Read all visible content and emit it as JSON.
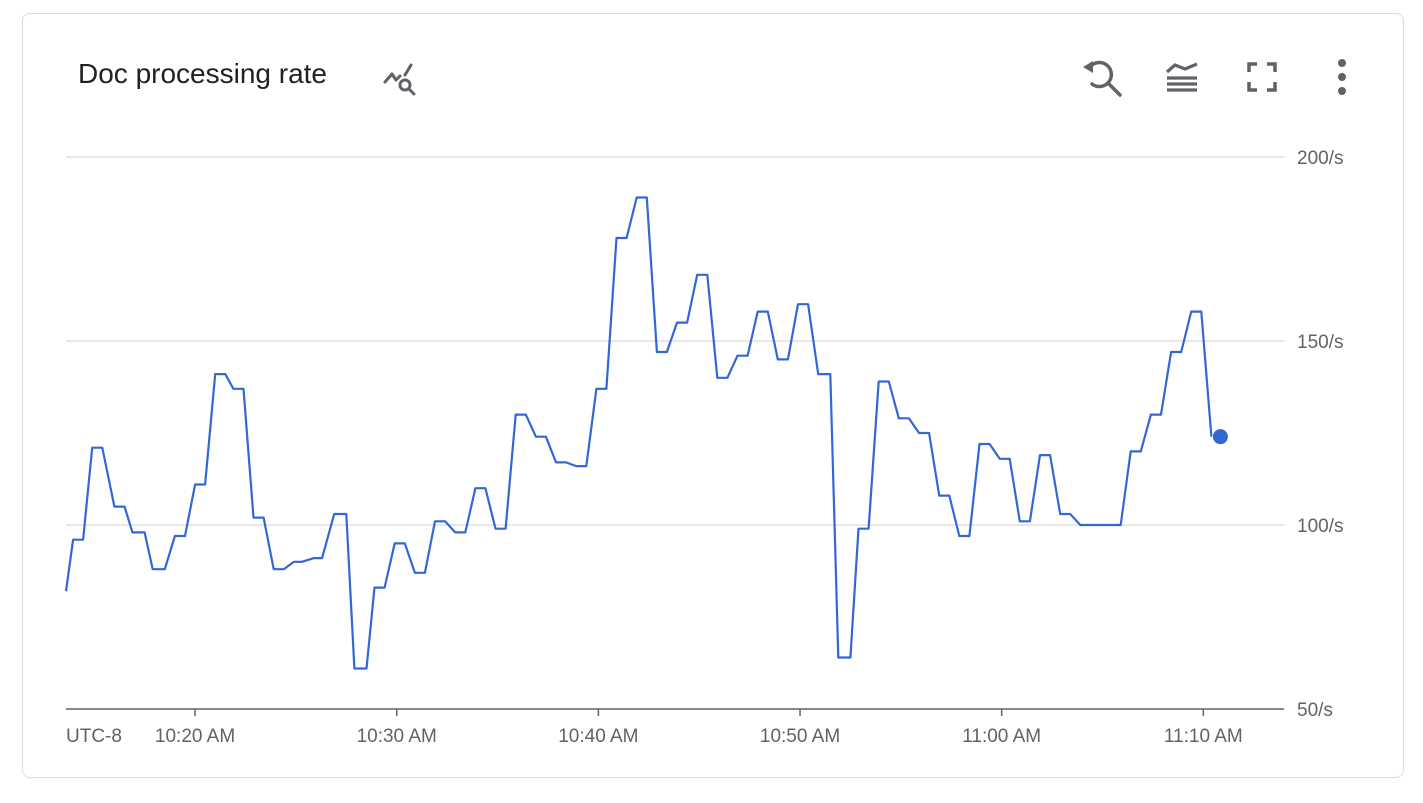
{
  "card": {
    "title": "Doc processing rate"
  },
  "icons": {
    "explore": "chart-explore-icon",
    "reset_zoom": "reset-zoom-icon",
    "legend": "legend-toggle-icon",
    "fullscreen": "fullscreen-icon",
    "more": "more-vert-icon"
  },
  "colors": {
    "series": "#3367d6",
    "grid": "#e0e0e0",
    "axis": "#5f6368",
    "text": "#202124"
  },
  "chart_data": {
    "type": "line",
    "timezone_label": "UTC-8",
    "x_tick_labels": [
      "10:20 AM",
      "10:30 AM",
      "10:40 AM",
      "10:50 AM",
      "11:00 AM",
      "11:10 AM"
    ],
    "x_ticks_min": [
      20,
      30,
      40,
      50,
      60,
      70
    ],
    "xlim_min": [
      13.6,
      74.0
    ],
    "y_tick_labels": [
      "50/s",
      "100/s",
      "150/s",
      "200/s"
    ],
    "y_ticks": [
      50,
      100,
      150,
      200
    ],
    "ylim": [
      50,
      200
    ],
    "grid": true,
    "series": [
      {
        "x_min": [
          13.6,
          13.95,
          14.45,
          14.9,
          15.4,
          16.0,
          16.5,
          16.9,
          17.5,
          17.9,
          18.5,
          19.0,
          19.5,
          20.0,
          20.5,
          21.0,
          21.5,
          21.9,
          22.4,
          22.9,
          23.4,
          23.9,
          24.4,
          24.9,
          25.3,
          25.9,
          26.3,
          26.9,
          27.5,
          27.9,
          28.5,
          28.9,
          29.4,
          29.9,
          30.4,
          30.9,
          31.4,
          31.9,
          32.4,
          32.9,
          33.4,
          33.9,
          34.4,
          34.9,
          35.4,
          35.9,
          36.4,
          36.9,
          37.4,
          37.9,
          38.4,
          38.9,
          39.4,
          39.9,
          40.4,
          40.9,
          41.4,
          41.9,
          42.4,
          42.9,
          43.4,
          43.9,
          44.4,
          44.9,
          45.4,
          45.9,
          46.4,
          46.9,
          47.4,
          47.9,
          48.4,
          48.9,
          49.4,
          49.9,
          50.4,
          50.9,
          51.5,
          51.9,
          52.5,
          52.9,
          53.4,
          53.9,
          54.4,
          54.9,
          55.4,
          55.9,
          56.4,
          56.9,
          57.4,
          57.9,
          58.4,
          58.9,
          59.4,
          59.9,
          60.4,
          60.9,
          61.4,
          61.9,
          62.4,
          62.9,
          63.4,
          63.9,
          64.4,
          64.9,
          65.4,
          65.9,
          66.4,
          66.9,
          67.4,
          67.9,
          68.4,
          68.9,
          69.4,
          69.9,
          70.4
        ],
        "y": [
          82,
          96,
          96,
          121,
          121,
          105,
          105,
          98,
          98,
          88,
          88,
          97,
          97,
          111,
          111,
          141,
          141,
          137,
          137,
          102,
          102,
          88,
          88,
          90,
          90,
          91,
          91,
          103,
          103,
          61,
          61,
          83,
          83,
          95,
          95,
          87,
          87,
          101,
          101,
          98,
          98,
          110,
          110,
          99,
          99,
          130,
          130,
          124,
          124,
          117,
          117,
          116,
          116,
          137,
          137,
          178,
          178,
          189,
          189,
          147,
          147,
          155,
          155,
          168,
          168,
          140,
          140,
          146,
          146,
          158,
          158,
          145,
          145,
          160,
          160,
          141,
          141,
          64,
          64,
          99,
          99,
          139,
          139,
          129,
          129,
          125,
          125,
          108,
          108,
          97,
          97,
          122,
          122,
          118,
          118,
          101,
          101,
          119,
          119,
          103,
          103,
          100,
          100,
          100,
          100,
          100,
          120,
          120,
          130,
          130,
          147,
          147,
          158,
          158,
          124
        ]
      }
    ],
    "last_point": {
      "x_min": 70.4,
      "y": 124
    }
  }
}
